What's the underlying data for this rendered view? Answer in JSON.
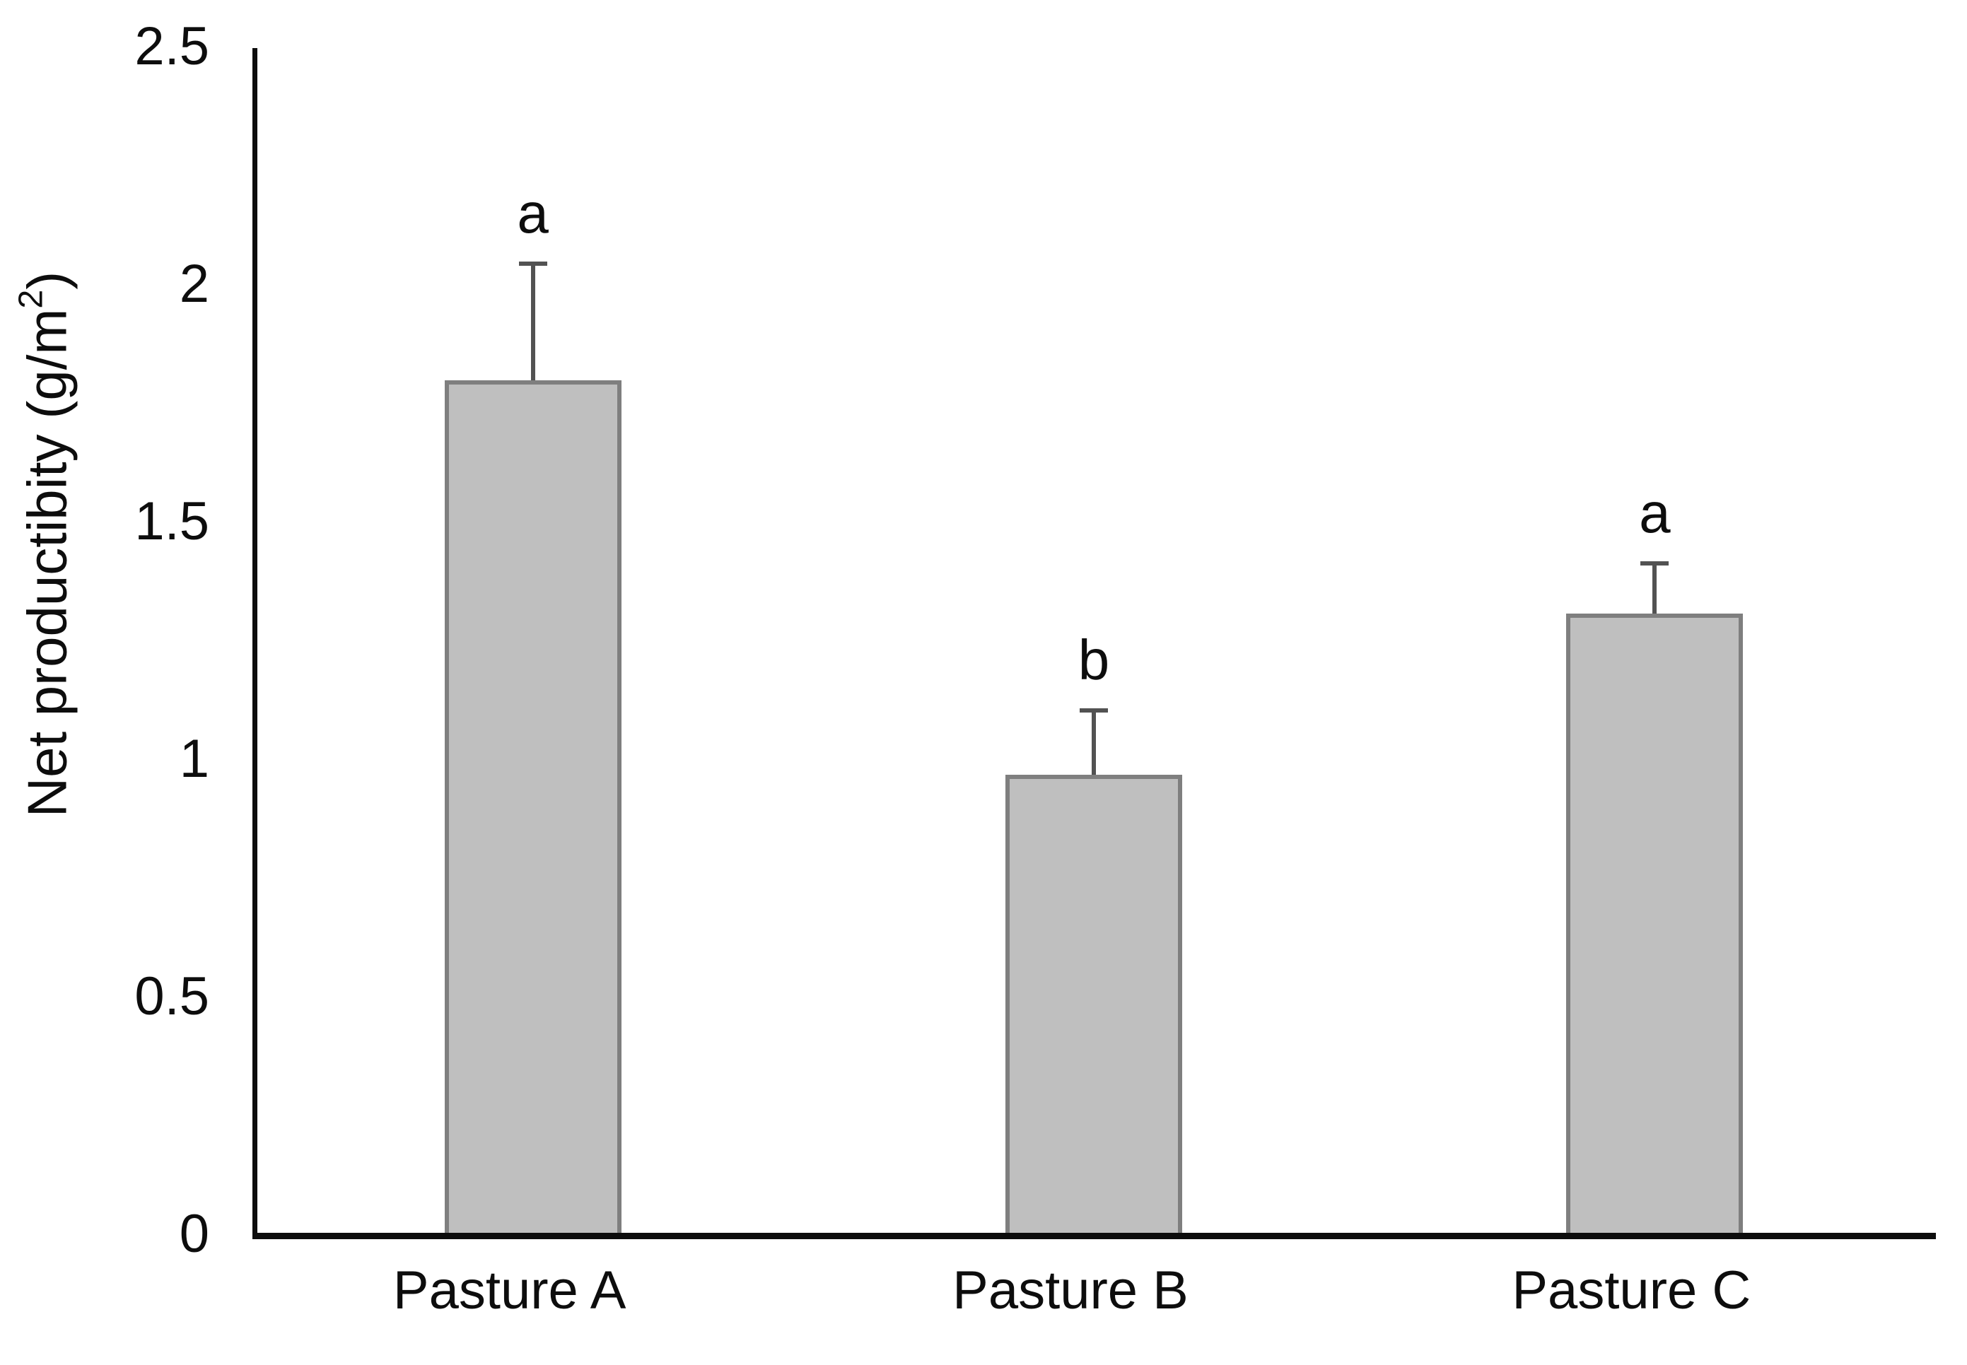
{
  "chart_data": {
    "type": "bar",
    "title": "",
    "categories": [
      "Pasture A",
      "Pasture B",
      "Pasture C"
    ],
    "values": [
      1.8,
      0.97,
      1.31
    ],
    "errors_up": [
      0.25,
      0.14,
      0.11
    ],
    "error_whisker_tops": [
      2.05,
      1.11,
      1.42
    ],
    "significance_letters": [
      "a",
      "b",
      "a"
    ],
    "xlabel": "",
    "ylabel": "Net productibity (g/m²)",
    "ylabel_parts": {
      "prefix": "Net productibity (g/m",
      "superscript": "2",
      "suffix": ")"
    },
    "ylim": [
      0,
      2.5
    ],
    "yticks": [
      {
        "label": "0",
        "value": 0
      },
      {
        "label": "0.5",
        "value": 0.5
      },
      {
        "label": "1",
        "value": 1
      },
      {
        "label": "1.5",
        "value": 1.5
      },
      {
        "label": "2",
        "value": 2
      },
      {
        "label": "2.5",
        "value": 2.5
      }
    ],
    "grid": false,
    "legend": "none",
    "error_bars": "upper-only",
    "colors": {
      "bar_fill": "#bfbfbf",
      "bar_border": "#7f7f7f",
      "error_bar": "#525252",
      "axis_line": "#0d0d0d",
      "text": "#0d0d0d",
      "background": "#ffffff"
    }
  }
}
